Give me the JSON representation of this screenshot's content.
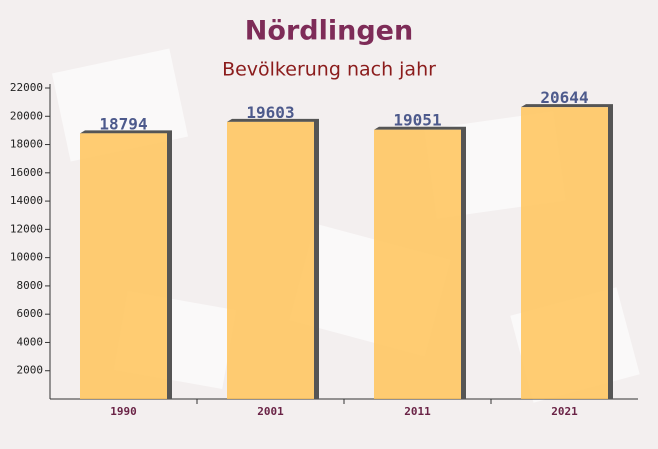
{
  "chart_data": {
    "type": "bar",
    "title": "Nördlingen",
    "subtitle": "Bevölkerung nach jahr",
    "categories": [
      "1990",
      "2001",
      "2011",
      "2021"
    ],
    "values": [
      18794,
      19603,
      19051,
      20644
    ],
    "color": "#ffc45a",
    "ylim": [
      0,
      22000
    ],
    "yticks": [
      2000,
      4000,
      6000,
      8000,
      10000,
      12000,
      14000,
      16000,
      18000,
      20000,
      22000
    ]
  }
}
